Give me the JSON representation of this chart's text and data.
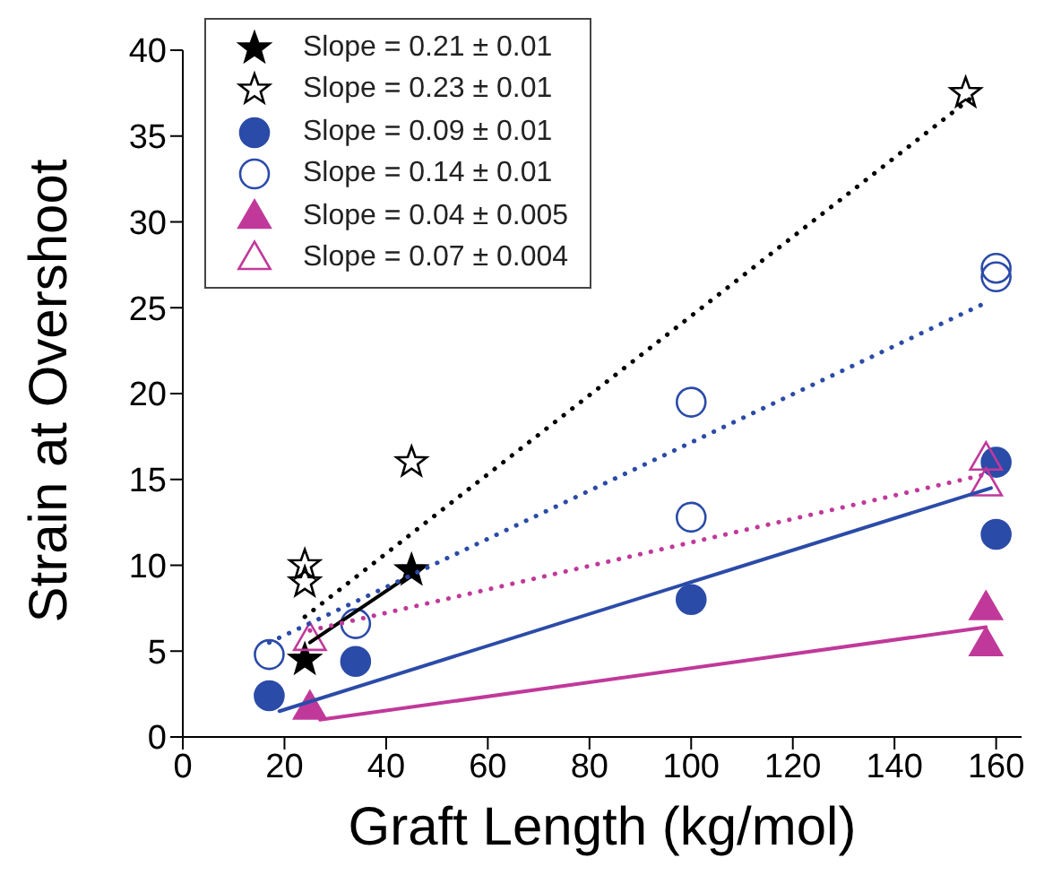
{
  "chart_data": {
    "type": "scatter",
    "xlabel": "Graft Length (kg/mol)",
    "ylabel": "Strain at Overshoot",
    "xlim": [
      0,
      165
    ],
    "xticks": [
      0,
      20,
      40,
      60,
      80,
      100,
      120,
      140,
      160
    ],
    "ylim": [
      0,
      40
    ],
    "yticks": [
      0,
      5,
      10,
      15,
      20,
      25,
      30,
      35,
      40
    ],
    "grid": false,
    "legend": "top left",
    "series": [
      {
        "name": "Slope = 0.21 ± 0.01",
        "color": "#000000",
        "marker": "star",
        "x": [
          24,
          45
        ],
        "values": [
          4.5,
          9.7
        ]
      },
      {
        "name": "Slope = 0.23 ± 0.01",
        "color": "#000000",
        "marker": "star",
        "x": [
          24,
          24,
          45,
          154
        ],
        "values": [
          10,
          9,
          16,
          37.5
        ]
      },
      {
        "name": "Slope = 0.09 ± 0.01",
        "color": "#2b4ba8",
        "marker": "circle",
        "x": [
          17,
          34,
          100,
          160,
          160
        ],
        "values": [
          2.4,
          4.4,
          8,
          16,
          11.8
        ]
      },
      {
        "name": "Slope = 0.14 ± 0.01",
        "color": "#2b4ba8",
        "marker": "circle",
        "x": [
          17,
          34,
          100,
          100,
          160,
          160
        ],
        "values": [
          4.8,
          6.6,
          19.5,
          12.8,
          27.3,
          26.8
        ]
      },
      {
        "name": "Slope = 0.04 ± 0.005",
        "color": "#c0399a",
        "marker": "triangle",
        "x": [
          25,
          158,
          158
        ],
        "values": [
          1.7,
          7.5,
          5.4
        ]
      },
      {
        "name": "Slope = 0.07 ± 0.004",
        "color": "#c0399a",
        "marker": "triangle",
        "x": [
          25,
          158,
          158
        ],
        "values": [
          5.7,
          16.2,
          14.7
        ]
      },
      {
        "type": "line",
        "color": "#000000",
        "marker": "none",
        "line_style": "solid",
        "x": [
          25,
          45
        ],
        "values": [
          5.5,
          9.5
        ]
      },
      {
        "type": "line",
        "color": "#000000",
        "marker": "none",
        "line_style": "dotted",
        "x": [
          24,
          155
        ],
        "values": [
          7,
          37.2
        ]
      },
      {
        "type": "line",
        "color": "#2b4ba8",
        "marker": "none",
        "line_style": "solid",
        "x": [
          19,
          159
        ],
        "values": [
          1.5,
          14.5
        ]
      },
      {
        "type": "line",
        "color": "#2b4ba8",
        "marker": "none",
        "line_style": "dotted",
        "x": [
          17,
          158
        ],
        "values": [
          5.5,
          25.3
        ]
      },
      {
        "type": "line",
        "color": "#c0399a",
        "marker": "none",
        "line_style": "solid",
        "x": [
          27,
          158
        ],
        "values": [
          1,
          6.4
        ]
      },
      {
        "type": "line",
        "color": "#c0399a",
        "marker": "none",
        "line_style": "dotted",
        "x": [
          25,
          158
        ],
        "values": [
          6.2,
          15.3
        ]
      }
    ]
  }
}
